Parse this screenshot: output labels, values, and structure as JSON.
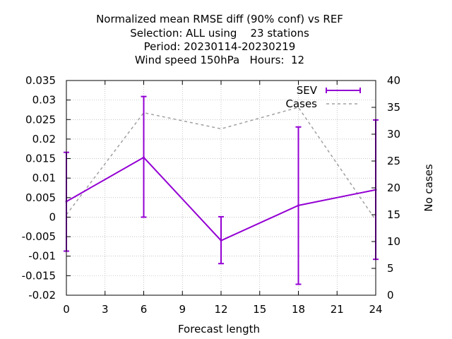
{
  "chart_data": {
    "type": "line",
    "title_lines": [
      "Normalized mean RMSE diff (90% conf) vs REF",
      "Selection: ALL using    23 stations",
      "Period: 20230114-20230219",
      "Wind speed 150hPa   Hours:  12"
    ],
    "xlabel": "Forecast length",
    "ylabel": "",
    "y2label": "No cases",
    "xlim": [
      0,
      24
    ],
    "ylim": [
      -0.02,
      0.035
    ],
    "y2lim": [
      0,
      40
    ],
    "x_ticks": [
      0,
      3,
      6,
      9,
      12,
      15,
      18,
      21,
      24
    ],
    "x_tick_labels": [
      "0",
      "3",
      "6",
      "9",
      "12",
      "15",
      "18",
      "21",
      "24"
    ],
    "y_ticks": [
      -0.02,
      -0.015,
      -0.01,
      -0.005,
      0,
      0.005,
      0.01,
      0.015,
      0.02,
      0.025,
      0.03,
      0.035
    ],
    "y_tick_labels": [
      "-0.02",
      "-0.015",
      "-0.01",
      "-0.005",
      "0",
      "0.005",
      "0.01",
      "0.015",
      "0.02",
      "0.025",
      "0.03",
      "0.035"
    ],
    "y2_ticks": [
      0,
      5,
      10,
      15,
      20,
      25,
      30,
      35,
      40
    ],
    "y2_tick_labels": [
      "0",
      "5",
      "10",
      "15",
      "20",
      "25",
      "30",
      "35",
      "40"
    ],
    "grid": true,
    "legend_position": "top-right",
    "series": [
      {
        "name": "SEV",
        "axis": "y",
        "style": "line-errorbars",
        "color": "#9400d3",
        "x": [
          0,
          6,
          12,
          18,
          24
        ],
        "values": [
          0.004,
          0.0153,
          -0.006,
          0.003,
          0.007
        ],
        "err_low": [
          -0.0087,
          0.0,
          -0.0119,
          -0.0172,
          -0.0108
        ],
        "err_high": [
          0.0166,
          0.0309,
          0.0001,
          0.0231,
          0.0249
        ]
      },
      {
        "name": "Cases",
        "axis": "y2",
        "style": "dashed",
        "color": "#a0a0a0",
        "x": [
          0,
          6,
          12,
          18,
          24
        ],
        "values": [
          15,
          34,
          31,
          35,
          14
        ]
      }
    ]
  }
}
